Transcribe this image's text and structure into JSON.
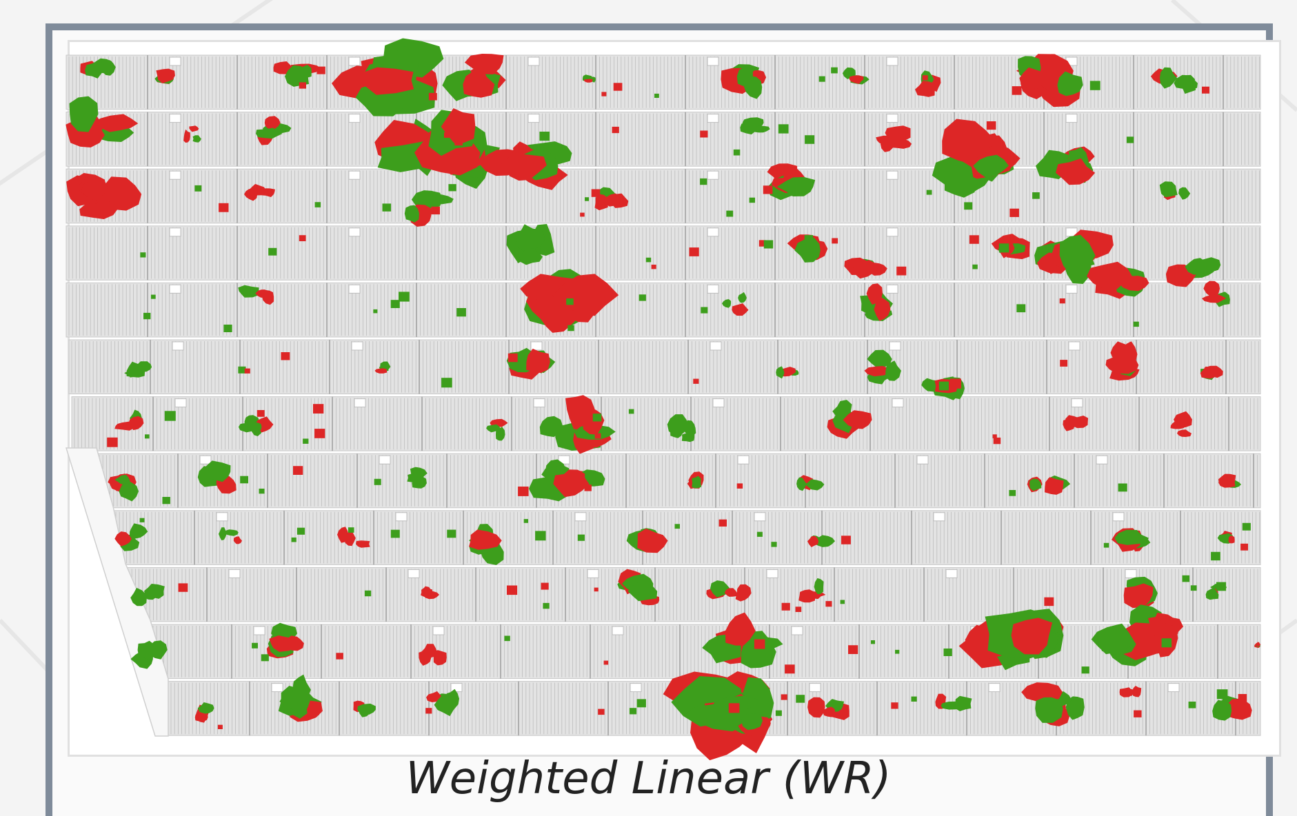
{
  "caption": "Weighted Linear (WR)",
  "colors": {
    "green": "#3d9e1c",
    "red": "#dd2626",
    "panel": "#e3e3e3",
    "panel_line": "#bcbcbc",
    "frame": "#7f8b9a"
  },
  "legend_semantics": [
    "green",
    "red"
  ]
}
